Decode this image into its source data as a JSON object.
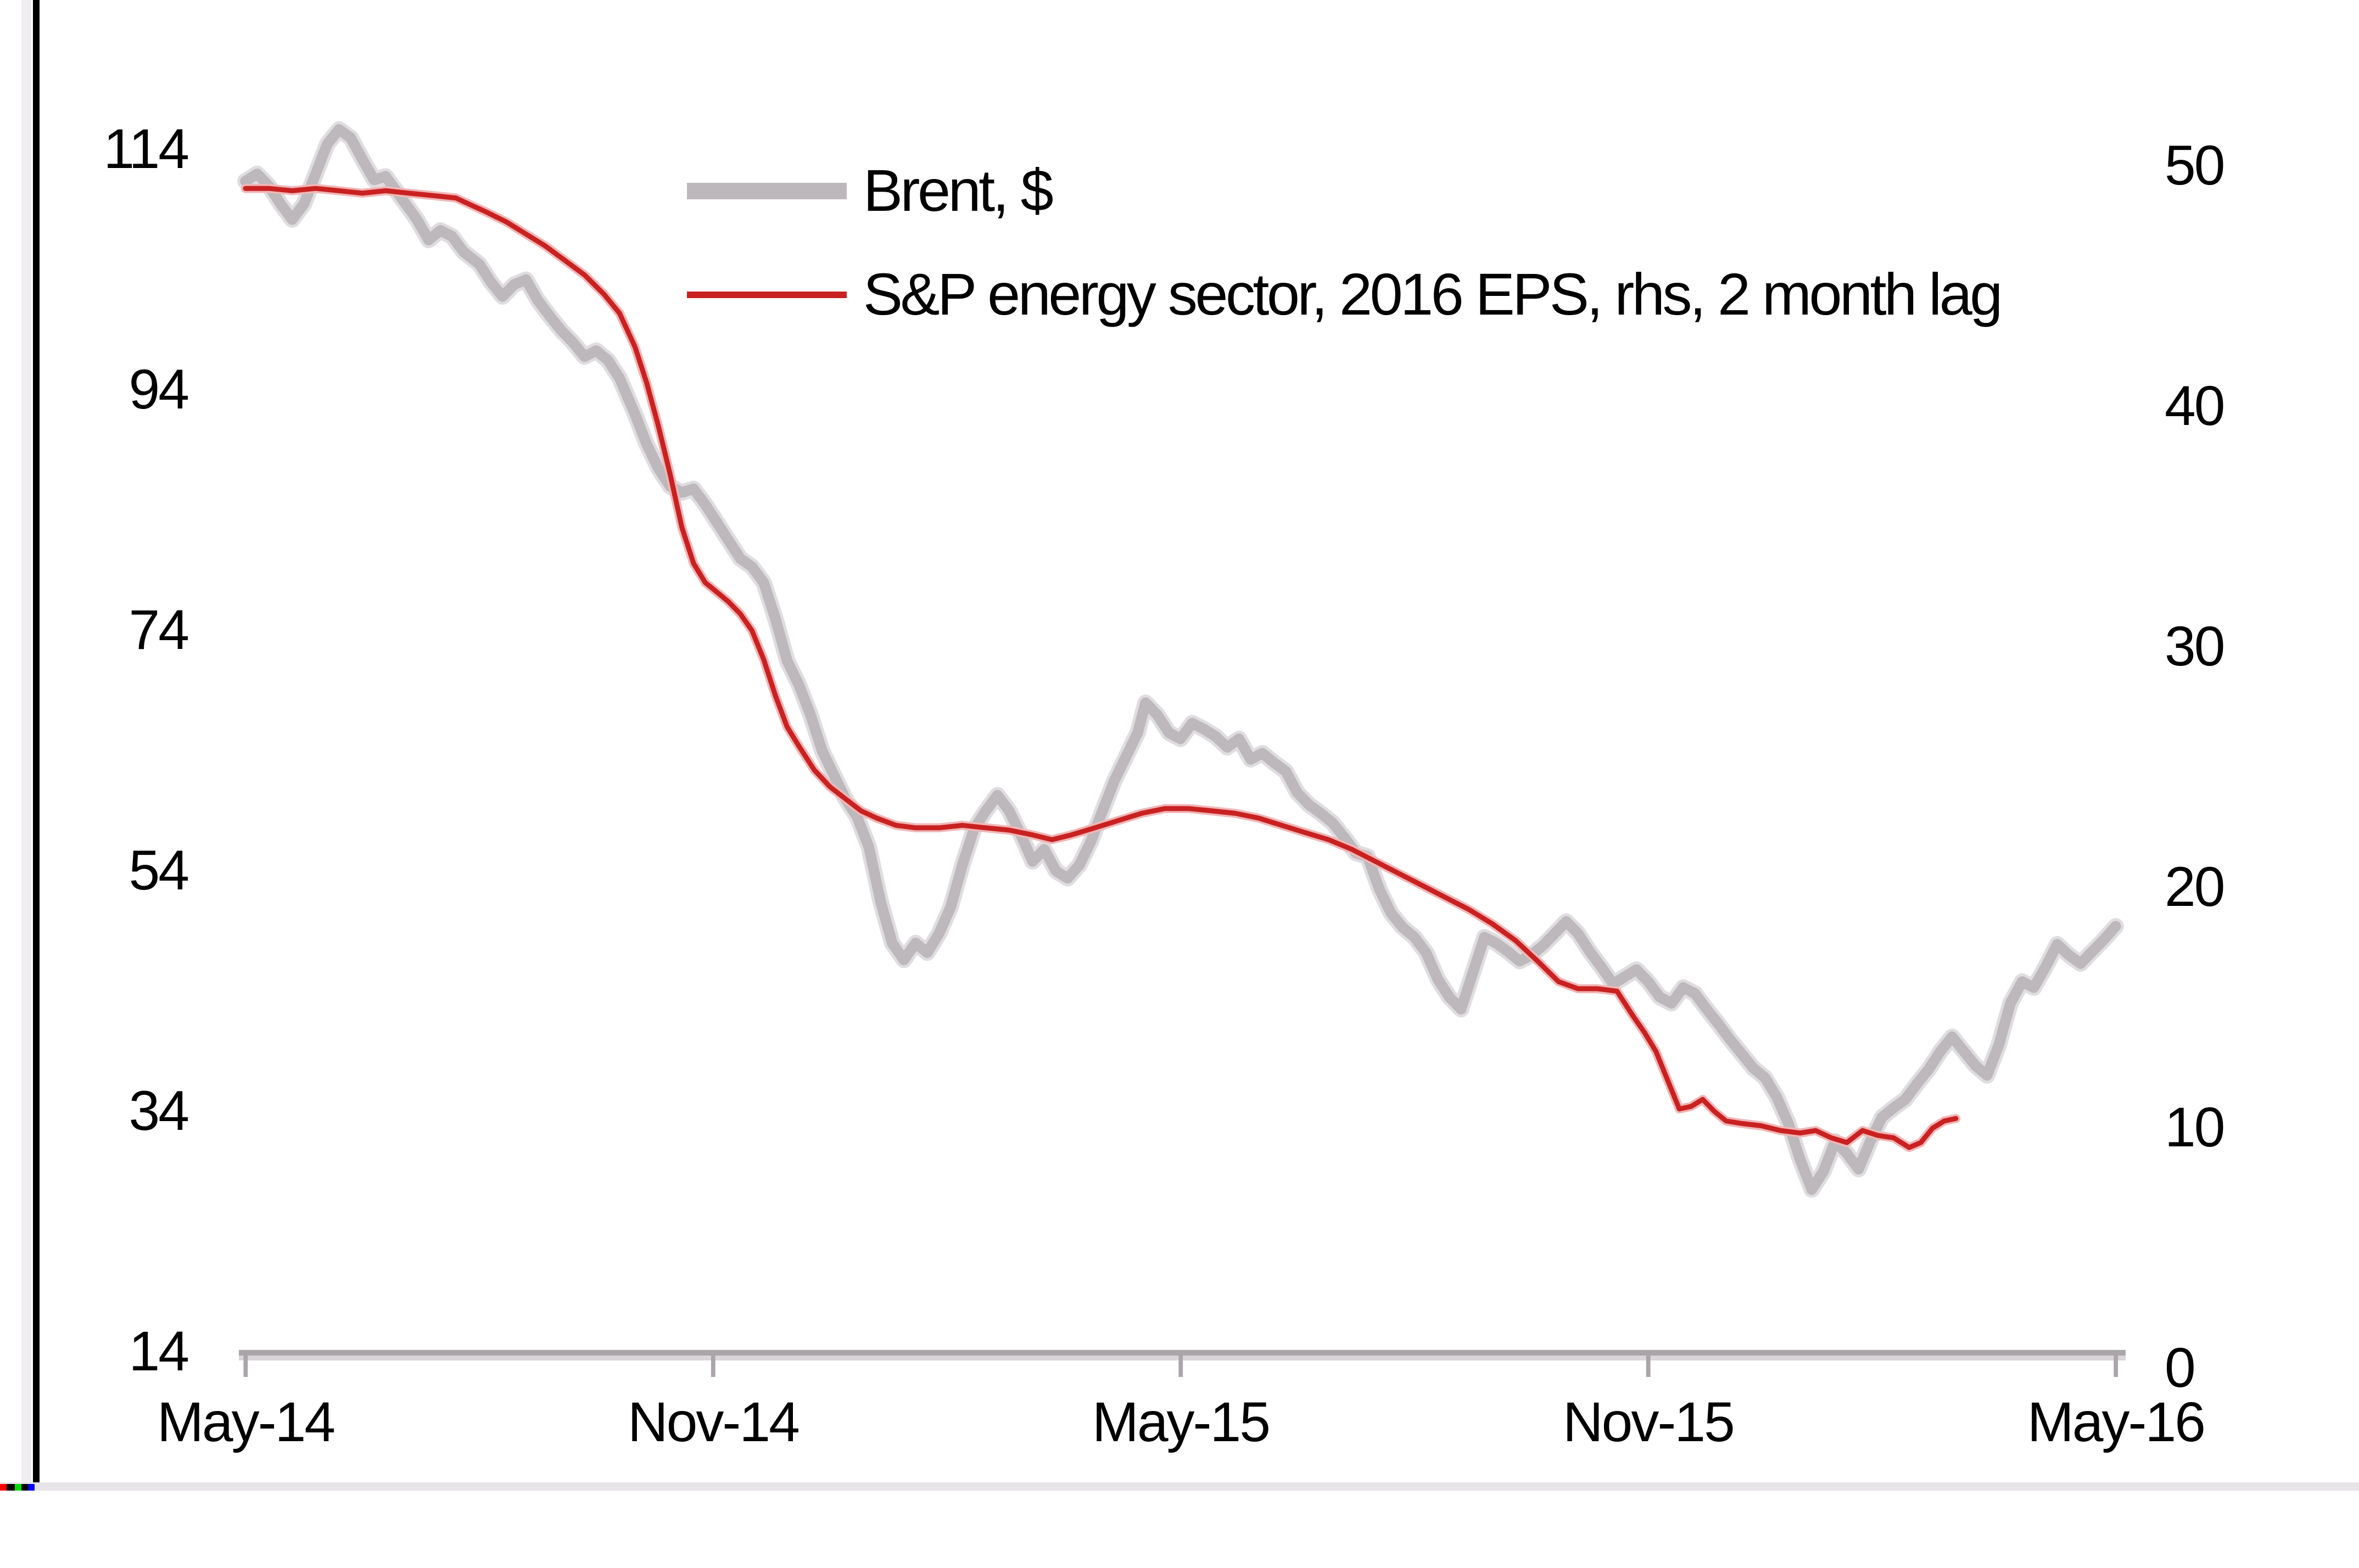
{
  "page": {
    "background": "#ffffff"
  },
  "frame": {
    "left_border_colors": [
      "#f0eef0",
      "#000000"
    ],
    "bottom_line_color": "#e7e4e7",
    "artifact_strip_colors": [
      "#ff0000",
      "#000000",
      "#00dd00",
      "#000000",
      "#0000ff"
    ]
  },
  "chart_data": {
    "type": "line",
    "title": "",
    "grid": "off",
    "legend_position": "top-center-inside",
    "x_axis": {
      "tick_labels": [
        "May-14",
        "Nov-14",
        "May-15",
        "Nov-15",
        "May-16"
      ],
      "tick_positions_months": [
        0,
        6,
        12,
        18,
        24
      ],
      "range_months": [
        0,
        24
      ],
      "axis_color": "#a9a5a9",
      "axis_shadow_color": "#d9d5d9"
    },
    "left_axis": {
      "tick_labels": [
        "114",
        "94",
        "74",
        "54",
        "34",
        "14"
      ],
      "tick_values": [
        114,
        94,
        74,
        54,
        34,
        14
      ],
      "range": [
        14,
        114
      ]
    },
    "right_axis": {
      "tick_labels": [
        "50",
        "40",
        "30",
        "20",
        "10",
        "0"
      ],
      "tick_values": [
        50,
        40,
        30,
        20,
        10,
        0
      ],
      "range": [
        0,
        50
      ]
    },
    "series": [
      {
        "name": "Brent, $",
        "axis": "left",
        "color": "#bcb8bb",
        "halo_color": "#e0dde0",
        "stroke_width": 6.5,
        "halo_width": 10,
        "points": [
          [
            0,
            111.4
          ],
          [
            0.15,
            112.0
          ],
          [
            0.3,
            111.0
          ],
          [
            0.45,
            109.5
          ],
          [
            0.6,
            108.2
          ],
          [
            0.75,
            109.5
          ],
          [
            0.9,
            112.0
          ],
          [
            1.05,
            114.5
          ],
          [
            1.2,
            115.7
          ],
          [
            1.35,
            115.0
          ],
          [
            1.5,
            113.2
          ],
          [
            1.65,
            111.5
          ],
          [
            1.8,
            111.8
          ],
          [
            2.0,
            110.0
          ],
          [
            2.2,
            108.2
          ],
          [
            2.35,
            106.5
          ],
          [
            2.5,
            107.3
          ],
          [
            2.65,
            106.8
          ],
          [
            2.8,
            105.5
          ],
          [
            3.0,
            104.5
          ],
          [
            3.15,
            103.0
          ],
          [
            3.3,
            101.8
          ],
          [
            3.45,
            102.8
          ],
          [
            3.6,
            103.2
          ],
          [
            3.75,
            101.5
          ],
          [
            3.9,
            100.2
          ],
          [
            4.05,
            99.0
          ],
          [
            4.2,
            98.0
          ],
          [
            4.35,
            96.8
          ],
          [
            4.5,
            97.3
          ],
          [
            4.65,
            96.5
          ],
          [
            4.8,
            95.0
          ],
          [
            5.0,
            92.0
          ],
          [
            5.15,
            89.5
          ],
          [
            5.3,
            87.5
          ],
          [
            5.45,
            86.0
          ],
          [
            5.6,
            85.5
          ],
          [
            5.75,
            85.8
          ],
          [
            5.9,
            84.5
          ],
          [
            6.05,
            83.0
          ],
          [
            6.2,
            81.5
          ],
          [
            6.35,
            80.0
          ],
          [
            6.5,
            79.3
          ],
          [
            6.65,
            78.0
          ],
          [
            6.8,
            75.0
          ],
          [
            6.95,
            71.5
          ],
          [
            7.1,
            69.5
          ],
          [
            7.25,
            67.0
          ],
          [
            7.4,
            64.0
          ],
          [
            7.55,
            62.0
          ],
          [
            7.7,
            60.0
          ],
          [
            7.85,
            58.5
          ],
          [
            8.0,
            56.0
          ],
          [
            8.15,
            51.5
          ],
          [
            8.3,
            48.0
          ],
          [
            8.45,
            46.6
          ],
          [
            8.6,
            48.0
          ],
          [
            8.75,
            47.2
          ],
          [
            8.9,
            48.8
          ],
          [
            9.05,
            51.0
          ],
          [
            9.2,
            54.5
          ],
          [
            9.35,
            57.5
          ],
          [
            9.5,
            59.0
          ],
          [
            9.65,
            60.3
          ],
          [
            9.8,
            59.0
          ],
          [
            9.95,
            57.0
          ],
          [
            10.1,
            54.8
          ],
          [
            10.25,
            55.8
          ],
          [
            10.4,
            54.0
          ],
          [
            10.55,
            53.4
          ],
          [
            10.7,
            54.5
          ],
          [
            10.85,
            56.5
          ],
          [
            11.0,
            59.0
          ],
          [
            11.15,
            61.5
          ],
          [
            11.3,
            63.5
          ],
          [
            11.45,
            65.5
          ],
          [
            11.55,
            68.0
          ],
          [
            11.7,
            67.0
          ],
          [
            11.85,
            65.5
          ],
          [
            12.0,
            65.0
          ],
          [
            12.15,
            66.3
          ],
          [
            12.3,
            65.8
          ],
          [
            12.45,
            65.2
          ],
          [
            12.6,
            64.3
          ],
          [
            12.75,
            65.0
          ],
          [
            12.9,
            63.3
          ],
          [
            13.05,
            63.8
          ],
          [
            13.2,
            63.0
          ],
          [
            13.35,
            62.3
          ],
          [
            13.5,
            60.5
          ],
          [
            13.65,
            59.5
          ],
          [
            13.8,
            58.8
          ],
          [
            13.95,
            58.0
          ],
          [
            14.1,
            56.8
          ],
          [
            14.25,
            55.5
          ],
          [
            14.4,
            55.2
          ],
          [
            14.55,
            52.5
          ],
          [
            14.7,
            50.5
          ],
          [
            14.85,
            49.3
          ],
          [
            15.0,
            48.5
          ],
          [
            15.15,
            47.2
          ],
          [
            15.3,
            45.0
          ],
          [
            15.45,
            43.5
          ],
          [
            15.6,
            42.5
          ],
          [
            15.75,
            45.5
          ],
          [
            15.9,
            48.5
          ],
          [
            16.05,
            48.0
          ],
          [
            16.2,
            47.3
          ],
          [
            16.35,
            46.5
          ],
          [
            16.5,
            47.0
          ],
          [
            16.65,
            47.8
          ],
          [
            16.8,
            48.8
          ],
          [
            16.95,
            49.8
          ],
          [
            17.1,
            48.8
          ],
          [
            17.25,
            47.3
          ],
          [
            17.4,
            46.0
          ],
          [
            17.55,
            44.6
          ],
          [
            17.7,
            45.2
          ],
          [
            17.85,
            45.8
          ],
          [
            18.0,
            44.8
          ],
          [
            18.15,
            43.5
          ],
          [
            18.3,
            43.0
          ],
          [
            18.45,
            44.3
          ],
          [
            18.6,
            43.8
          ],
          [
            18.75,
            42.5
          ],
          [
            18.9,
            41.3
          ],
          [
            19.05,
            40.0
          ],
          [
            19.2,
            38.8
          ],
          [
            19.35,
            37.6
          ],
          [
            19.5,
            36.8
          ],
          [
            19.65,
            35.2
          ],
          [
            19.8,
            33.0
          ],
          [
            19.95,
            30.0
          ],
          [
            20.1,
            27.5
          ],
          [
            20.25,
            29.0
          ],
          [
            20.4,
            31.5
          ],
          [
            20.55,
            30.5
          ],
          [
            20.7,
            29.2
          ],
          [
            20.85,
            31.5
          ],
          [
            21.0,
            33.5
          ],
          [
            21.15,
            34.3
          ],
          [
            21.3,
            35.0
          ],
          [
            21.45,
            36.3
          ],
          [
            21.6,
            37.5
          ],
          [
            21.75,
            39.0
          ],
          [
            21.9,
            40.2
          ],
          [
            22.05,
            39.0
          ],
          [
            22.2,
            37.8
          ],
          [
            22.35,
            37.0
          ],
          [
            22.5,
            39.5
          ],
          [
            22.65,
            43.0
          ],
          [
            22.8,
            44.8
          ],
          [
            22.95,
            44.3
          ],
          [
            23.1,
            46.0
          ],
          [
            23.25,
            47.9
          ],
          [
            23.4,
            47.0
          ],
          [
            23.55,
            46.3
          ],
          [
            23.7,
            47.3
          ],
          [
            23.85,
            48.3
          ],
          [
            24.0,
            49.4
          ]
        ]
      },
      {
        "name": "S&P energy sector, 2016 EPS, rhs, 2 month lag",
        "axis": "right",
        "color": "#c92121",
        "halo_color": "#f0b6b6",
        "stroke_width": 3,
        "halo_width": 5.5,
        "points": [
          [
            0,
            48.4
          ],
          [
            0.3,
            48.4
          ],
          [
            0.6,
            48.3
          ],
          [
            0.9,
            48.4
          ],
          [
            1.2,
            48.3
          ],
          [
            1.5,
            48.2
          ],
          [
            1.8,
            48.3
          ],
          [
            2.1,
            48.2
          ],
          [
            2.4,
            48.1
          ],
          [
            2.7,
            48.0
          ],
          [
            2.9,
            47.7
          ],
          [
            3.1,
            47.4
          ],
          [
            3.35,
            47.0
          ],
          [
            3.6,
            46.5
          ],
          [
            3.85,
            46.0
          ],
          [
            4.1,
            45.4
          ],
          [
            4.35,
            44.8
          ],
          [
            4.6,
            44.0
          ],
          [
            4.8,
            43.2
          ],
          [
            5.0,
            41.8
          ],
          [
            5.15,
            40.3
          ],
          [
            5.3,
            38.5
          ],
          [
            5.45,
            36.5
          ],
          [
            5.6,
            34.3
          ],
          [
            5.75,
            32.8
          ],
          [
            5.9,
            32.0
          ],
          [
            6.05,
            31.6
          ],
          [
            6.2,
            31.2
          ],
          [
            6.35,
            30.7
          ],
          [
            6.5,
            30.0
          ],
          [
            6.65,
            28.8
          ],
          [
            6.8,
            27.3
          ],
          [
            6.95,
            26.0
          ],
          [
            7.1,
            25.2
          ],
          [
            7.3,
            24.2
          ],
          [
            7.5,
            23.5
          ],
          [
            7.7,
            23.0
          ],
          [
            7.9,
            22.5
          ],
          [
            8.1,
            22.2
          ],
          [
            8.35,
            21.9
          ],
          [
            8.6,
            21.8
          ],
          [
            8.9,
            21.8
          ],
          [
            9.2,
            21.9
          ],
          [
            9.5,
            21.8
          ],
          [
            9.8,
            21.7
          ],
          [
            10.1,
            21.5
          ],
          [
            10.35,
            21.3
          ],
          [
            10.6,
            21.5
          ],
          [
            10.9,
            21.8
          ],
          [
            11.2,
            22.1
          ],
          [
            11.5,
            22.4
          ],
          [
            11.8,
            22.6
          ],
          [
            12.1,
            22.6
          ],
          [
            12.4,
            22.5
          ],
          [
            12.7,
            22.4
          ],
          [
            13.0,
            22.2
          ],
          [
            13.3,
            21.9
          ],
          [
            13.6,
            21.6
          ],
          [
            13.9,
            21.3
          ],
          [
            14.2,
            20.9
          ],
          [
            14.5,
            20.4
          ],
          [
            14.8,
            19.9
          ],
          [
            15.1,
            19.4
          ],
          [
            15.4,
            18.9
          ],
          [
            15.7,
            18.4
          ],
          [
            16.0,
            17.8
          ],
          [
            16.3,
            17.1
          ],
          [
            16.6,
            16.2
          ],
          [
            16.85,
            15.4
          ],
          [
            17.1,
            15.1
          ],
          [
            17.35,
            15.1
          ],
          [
            17.6,
            15.0
          ],
          [
            17.8,
            14.0
          ],
          [
            17.95,
            13.3
          ],
          [
            18.1,
            12.5
          ],
          [
            18.25,
            11.3
          ],
          [
            18.4,
            10.1
          ],
          [
            18.55,
            10.2
          ],
          [
            18.7,
            10.5
          ],
          [
            18.85,
            10.0
          ],
          [
            19.0,
            9.6
          ],
          [
            19.2,
            9.5
          ],
          [
            19.45,
            9.4
          ],
          [
            19.7,
            9.2
          ],
          [
            19.95,
            9.1
          ],
          [
            20.15,
            9.2
          ],
          [
            20.35,
            8.9
          ],
          [
            20.55,
            8.7
          ],
          [
            20.75,
            9.2
          ],
          [
            20.95,
            9.0
          ],
          [
            21.15,
            8.9
          ],
          [
            21.35,
            8.5
          ],
          [
            21.5,
            8.7
          ],
          [
            21.65,
            9.3
          ],
          [
            21.8,
            9.6
          ],
          [
            21.95,
            9.7
          ]
        ]
      }
    ]
  }
}
